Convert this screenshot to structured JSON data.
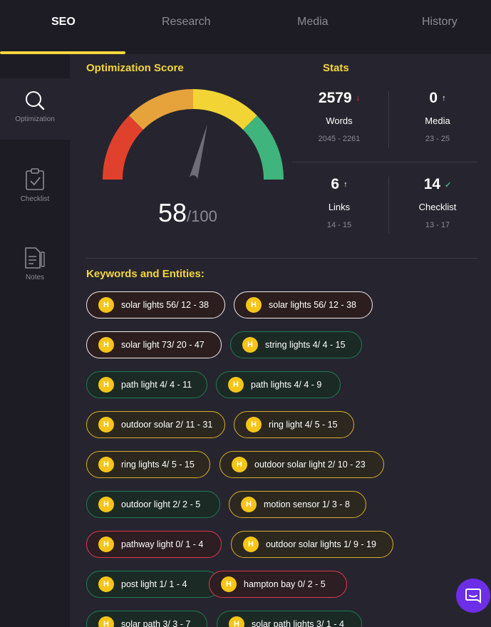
{
  "tabs": [
    {
      "label": "SEO"
    },
    {
      "label": "Research"
    },
    {
      "label": "Media"
    },
    {
      "label": "History"
    }
  ],
  "sidebar": {
    "items": [
      {
        "label": "Optimization",
        "icon": "search-icon"
      },
      {
        "label": "Checklist",
        "icon": "clipboard-check-icon"
      },
      {
        "label": "Notes",
        "icon": "notes-icon"
      }
    ]
  },
  "optimization": {
    "title": "Optimization Score",
    "score": "58",
    "max": "/100",
    "gauge_value": 0.58,
    "gauge_colors": [
      "#e0412d",
      "#e6a33c",
      "#f2d534",
      "#3fb47c"
    ]
  },
  "stats": {
    "title": "Stats",
    "items": [
      {
        "value": "2579",
        "arrow": "↓",
        "label": "Words",
        "range": "2045 - 2261",
        "arrow_color": "#e0412d"
      },
      {
        "value": "0",
        "arrow": "↑",
        "label": "Media",
        "range": "23 - 25",
        "arrow_color": "#ffffff"
      },
      {
        "value": "6",
        "arrow": "↑",
        "label": "Links",
        "range": "14 - 15",
        "arrow_color": "#ffffff"
      },
      {
        "value": "14",
        "arrow": "✓",
        "label": "Checklist",
        "range": "13 - 17",
        "arrow_color": "#3fb47c"
      }
    ]
  },
  "keywords": {
    "title": "Keywords and Entities:",
    "badge": "H",
    "items": [
      {
        "text": "solar lights 56/ 12 - 38",
        "status": "over"
      },
      {
        "text": "solar lights 56/ 12 - 38",
        "status": "over"
      },
      {
        "text": "solar light 73/ 20 - 47",
        "status": "over"
      },
      {
        "text": "string lights 4/ 4 - 15",
        "status": "good"
      },
      {
        "text": "path light 4/ 4 - 11",
        "status": "good"
      },
      {
        "text": "path lights 4/ 4 - 9",
        "status": "good"
      },
      {
        "text": "outdoor solar 2/ 11 - 31",
        "status": "under"
      },
      {
        "text": "ring light 4/ 5 - 15",
        "status": "under"
      },
      {
        "text": "ring lights 4/ 5 - 15",
        "status": "under"
      },
      {
        "text": "outdoor solar light 2/ 10 - 23",
        "status": "under"
      },
      {
        "text": "outdoor light 2/ 2 - 5",
        "status": "good"
      },
      {
        "text": "motion sensor 1/ 3 - 8",
        "status": "under"
      },
      {
        "text": "pathway light 0/ 1 - 4",
        "status": "missing"
      },
      {
        "text": "outdoor solar lights 1/ 9 - 19",
        "status": "under"
      },
      {
        "text": "post light 1/ 1 - 4",
        "status": "good"
      },
      {
        "text": "hampton bay 0/ 2 - 5",
        "status": "missing"
      },
      {
        "text": "solar path 3/ 3 - 7",
        "status": "good"
      },
      {
        "text": "solar path lights 3/ 1 - 4",
        "status": "good"
      }
    ]
  },
  "chat": {
    "icon": "chat-icon",
    "color": "#6c2ee6"
  }
}
